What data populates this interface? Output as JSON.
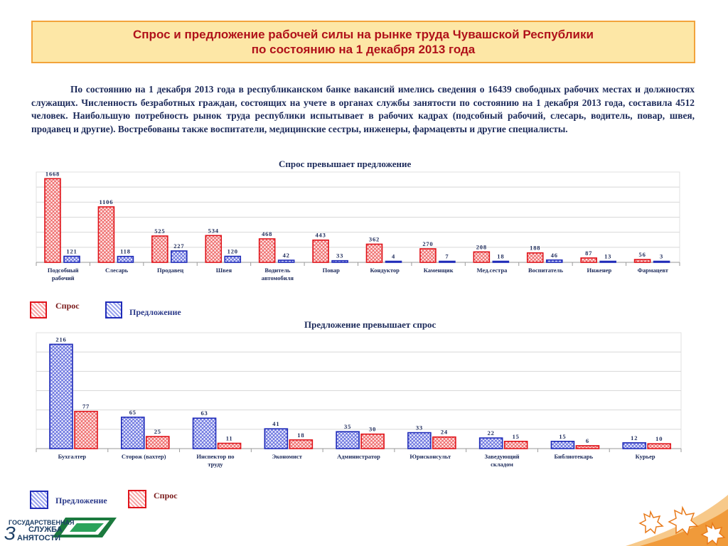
{
  "header": {
    "title_line1": "Спрос и предложение рабочей силы на рынке труда Чувашской Республики",
    "title_line2": "по состоянию на 1 декабря 2013 года"
  },
  "intro": "По состоянию на 1 декабря 2013 года в республиканском банке вакансий имелись сведения о 16439 свободных рабочих местах и должностях служащих. Численность безработных граждан, состоящих на учете в органах службы занятости по состоянию на 1 декабря 2013 года, составила 4512 человек. Наибольшую потребность рынок труда республики испытывает в рабочих кадрах (подсобный рабочий, слесарь, водитель, повар, швея, продавец и другие). Востребованы также воспитатели, медицинские сестры, инженеры, фармацевты и другие специалисты.",
  "legend1": {
    "demand": "Спрос",
    "supply": "Предложение"
  },
  "legend2": {
    "supply": "Предложение",
    "demand": "Спрос"
  },
  "logo": {
    "line1": "ГОСУДАРСТВЕННАЯ",
    "line2": "СЛУЖБА",
    "line3": "АНЯТОСТИ",
    "initial": "З"
  },
  "colors": {
    "demand": "#e0141b",
    "supply": "#1f2bb8",
    "title_text": "#b0111a",
    "title_bg": "#fde7a6",
    "title_border": "#f2a33b"
  },
  "chart_data": [
    {
      "type": "bar",
      "title": "Спрос превышает предложение",
      "categories": [
        [
          "Подсобный",
          "рабочий"
        ],
        [
          "Слесарь"
        ],
        [
          "Продавец"
        ],
        [
          "Швея"
        ],
        [
          "Водитель",
          "автомобиля"
        ],
        [
          "Повар"
        ],
        [
          "Кондуктор"
        ],
        [
          "Каменщик"
        ],
        [
          "Мед.сестра"
        ],
        [
          "Воспитатель"
        ],
        [
          "Инженер"
        ],
        [
          "Фармацевт"
        ]
      ],
      "series": [
        {
          "name": "Спрос",
          "values": [
            1668,
            1106,
            525,
            534,
            468,
            443,
            362,
            270,
            208,
            188,
            87,
            56
          ]
        },
        {
          "name": "Предложение",
          "values": [
            121,
            118,
            227,
            120,
            42,
            33,
            4,
            7,
            18,
            46,
            13,
            3
          ]
        }
      ],
      "ylim": [
        0,
        1800
      ],
      "grid": true
    },
    {
      "type": "bar",
      "title": "Предложение превышает спрос",
      "categories": [
        [
          "Бухгалтер"
        ],
        [
          "Сторож (вахтер)"
        ],
        [
          "Инспектор по",
          "труду"
        ],
        [
          "Экономист"
        ],
        [
          "Администратор"
        ],
        [
          "Юрисконсульт"
        ],
        [
          "Заведующий",
          "складом"
        ],
        [
          "Библиотекарь"
        ],
        [
          "Курьер"
        ]
      ],
      "series": [
        {
          "name": "Предложение",
          "values": [
            216,
            65,
            63,
            41,
            35,
            33,
            22,
            15,
            12
          ]
        },
        {
          "name": "Спрос",
          "values": [
            77,
            25,
            11,
            18,
            30,
            24,
            15,
            6,
            10
          ]
        }
      ],
      "ylim": [
        0,
        240
      ],
      "grid": true
    }
  ]
}
